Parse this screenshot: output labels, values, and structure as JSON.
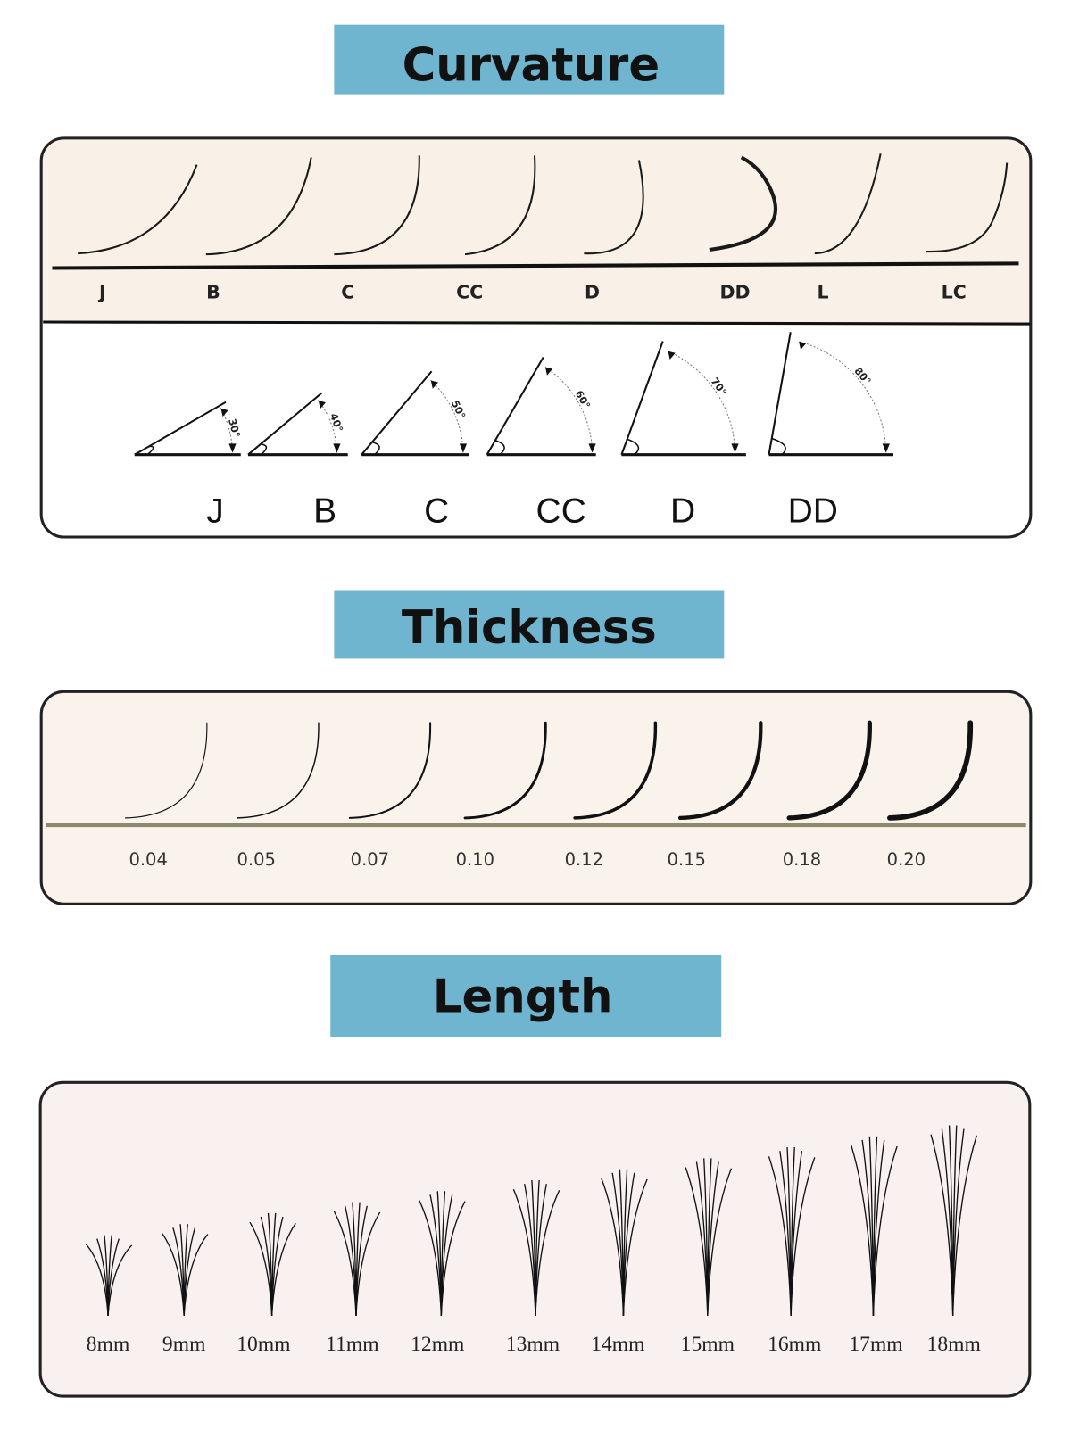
{
  "sections": {
    "curvature": {
      "title": "Curvature",
      "curls": [
        {
          "label": "J"
        },
        {
          "label": "B"
        },
        {
          "label": "C"
        },
        {
          "label": "CC"
        },
        {
          "label": "D"
        },
        {
          "label": "DD"
        },
        {
          "label": "L"
        },
        {
          "label": "LC"
        }
      ],
      "angles": [
        {
          "label": "J",
          "degrees": 30,
          "degree_text": "30°"
        },
        {
          "label": "B",
          "degrees": 40,
          "degree_text": "40°"
        },
        {
          "label": "C",
          "degrees": 50,
          "degree_text": "50°"
        },
        {
          "label": "CC",
          "degrees": 60,
          "degree_text": "60°"
        },
        {
          "label": "D",
          "degrees": 70,
          "degree_text": "70°"
        },
        {
          "label": "DD",
          "degrees": 80,
          "degree_text": "80°"
        }
      ]
    },
    "thickness": {
      "title": "Thickness",
      "items": [
        {
          "label": "0.04",
          "value": 0.04
        },
        {
          "label": "0.05",
          "value": 0.05
        },
        {
          "label": "0.07",
          "value": 0.07
        },
        {
          "label": "0.10",
          "value": 0.1
        },
        {
          "label": "0.12",
          "value": 0.12
        },
        {
          "label": "0.15",
          "value": 0.15
        },
        {
          "label": "0.18",
          "value": 0.18
        },
        {
          "label": "0.20",
          "value": 0.2
        }
      ]
    },
    "length": {
      "title": "Length",
      "items": [
        {
          "label": "8mm",
          "value": 8
        },
        {
          "label": "9mm",
          "value": 9
        },
        {
          "label": "10mm",
          "value": 10
        },
        {
          "label": "11mm",
          "value": 11
        },
        {
          "label": "12mm",
          "value": 12
        },
        {
          "label": "13mm",
          "value": 13
        },
        {
          "label": "14mm",
          "value": 14
        },
        {
          "label": "15mm",
          "value": 15
        },
        {
          "label": "16mm",
          "value": 16
        },
        {
          "label": "17mm",
          "value": 17
        },
        {
          "label": "18mm",
          "value": 18
        }
      ]
    }
  },
  "colors": {
    "title_bg": "#6fb5cf",
    "curvature_bg": "#f9f1e8",
    "thickness_bg": "#faf3ec",
    "thickness_line": "#8c8a6c",
    "length_bg": "#f9f0f0",
    "border": "#222222"
  }
}
